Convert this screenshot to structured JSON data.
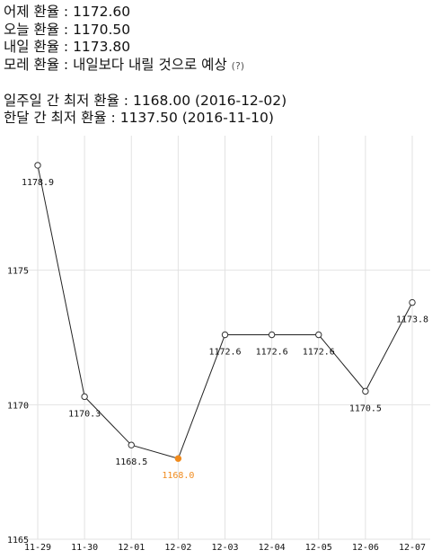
{
  "info": {
    "yesterday": {
      "label": "어제 환율 :",
      "value": "1172.60"
    },
    "today": {
      "label": "오늘 환율 :",
      "value": "1170.50"
    },
    "tomorrow": {
      "label": "내일 환율 :",
      "value": "1173.80"
    },
    "day_after": {
      "label": "모레 환율 :",
      "value": "내일보다 내릴 것으로 예상",
      "hint": "(?)"
    },
    "week_low": {
      "label": "일주일 간 최저 환율 :",
      "value": "1168.00 (2016-12-02)"
    },
    "month_low": {
      "label": "한달 간 최저 환율 :",
      "value": "1137.50 (2016-11-10)"
    }
  },
  "chart_data": {
    "type": "line",
    "title": "",
    "xlabel": "",
    "ylabel": "",
    "categories": [
      "11-29",
      "11-30",
      "12-01",
      "12-02",
      "12-03",
      "12-04",
      "12-05",
      "12-06",
      "12-07"
    ],
    "series": [
      {
        "values": [
          1178.9,
          1170.3,
          1168.5,
          1168.0,
          1172.6,
          1172.6,
          1172.6,
          1170.5,
          1173.8
        ],
        "labels": [
          "1178.9",
          "1170.3",
          "1168.5",
          "1168.0",
          "1172.6",
          "1172.6",
          "1172.6",
          "1170.5",
          "1173.8"
        ]
      }
    ],
    "highlight_index": 3,
    "highlight_color": "#f08a1c",
    "line_color": "#222222",
    "grid_color": "#e2e2e2",
    "ylim": [
      1165,
      1180
    ],
    "yticks": [
      1165,
      1170,
      1175
    ],
    "ytick_labels": [
      "1165",
      "1170",
      "1175"
    ],
    "grid": true,
    "legend": "none"
  }
}
